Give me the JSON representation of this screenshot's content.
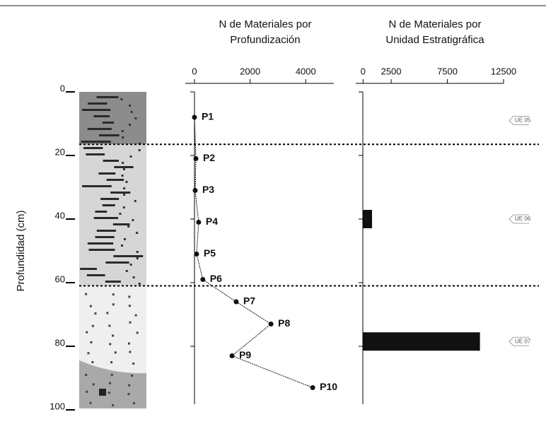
{
  "chart_data": [
    {
      "type": "stratigraphy",
      "ylabel": "Profundidad (cm)",
      "ylim": [
        0,
        100
      ],
      "yticks": [
        0,
        20,
        40,
        60,
        80,
        100
      ],
      "unit_boundaries": [
        16.5,
        61
      ]
    },
    {
      "type": "line",
      "title": [
        "N de Materiales  por",
        "Profundización"
      ],
      "labels": [
        "P1",
        "P2",
        "P3",
        "P4",
        "P5",
        "P6",
        "P7",
        "P8",
        "P9",
        "P10"
      ],
      "values": [
        0,
        50,
        25,
        150,
        75,
        300,
        1500,
        2750,
        1350,
        4250
      ],
      "depths": [
        8,
        21,
        31,
        41,
        51,
        59,
        66,
        73,
        83,
        93
      ],
      "color": "#111111",
      "xlim": [
        -330,
        5010
      ],
      "xticks": [
        0,
        2000,
        4000
      ]
    },
    {
      "type": "bar",
      "title": [
        "N de Materiales por",
        "Unidad Estratigráfica"
      ],
      "categories": [
        "UE 05",
        "UE 06",
        "UE 07"
      ],
      "depths": [
        9,
        40,
        78.5
      ],
      "values": [
        0,
        800,
        10400
      ],
      "color": "#111111",
      "xlim": [
        -650,
        12500
      ],
      "xticks": [
        0,
        2500,
        7500,
        12500
      ]
    }
  ]
}
